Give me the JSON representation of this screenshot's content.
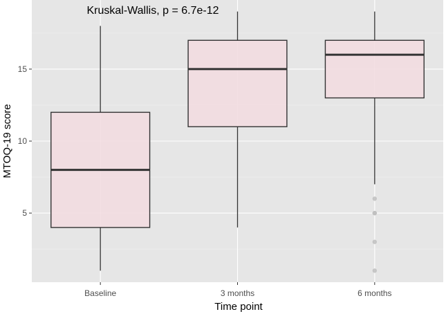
{
  "chart_data": {
    "type": "box",
    "annotation": "Kruskal-Wallis, p = 6.7e-12",
    "xlabel": "Time point",
    "ylabel": "MTOQ-19 score",
    "ylim": [
      0.2,
      19.8
    ],
    "y_ticks": [
      5,
      10,
      15
    ],
    "y_tick_labels": [
      "5",
      "10",
      "15"
    ],
    "y_minor_ticks": [
      2.5,
      7.5,
      12.5,
      17.5
    ],
    "grid": true,
    "box_fill": "#f2dbdf",
    "box_fill_opacity": 0.85,
    "outlier_color": "#bdbdbd",
    "categories": [
      "Baseline",
      "3 months",
      "6 months"
    ],
    "boxes": [
      {
        "category": "Baseline",
        "min": 1,
        "q1": 4,
        "median": 8,
        "q3": 12,
        "max": 18,
        "outliers": []
      },
      {
        "category": "3 months",
        "min": 4,
        "q1": 11,
        "median": 15,
        "q3": 17,
        "max": 19,
        "outliers": []
      },
      {
        "category": "6 months",
        "min": 7,
        "q1": 13,
        "median": 16,
        "q3": 17,
        "max": 19,
        "outliers": [
          6,
          5,
          5,
          3,
          1
        ]
      }
    ]
  }
}
